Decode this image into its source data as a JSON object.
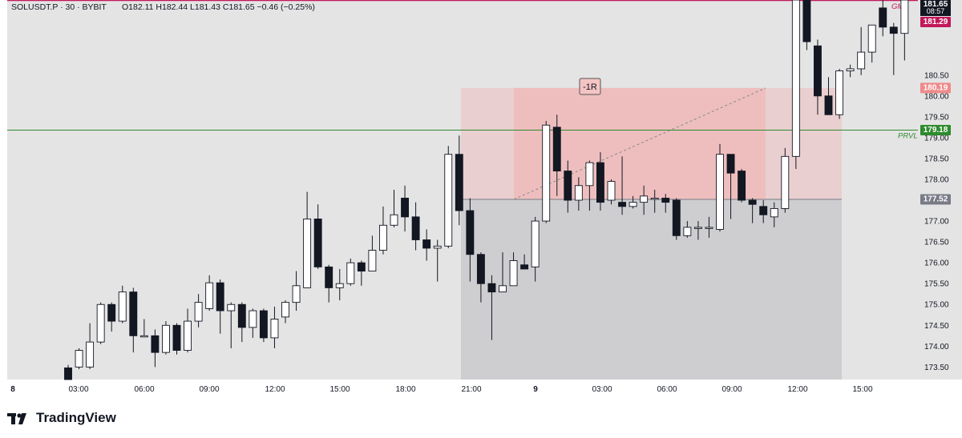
{
  "header": {
    "symbol": "SOLUSDT.P · 30 · BYBIT",
    "ohlc": "O182.11  H182.44  L181.43  C181.65  −0.46 (−0.25%)"
  },
  "brand": {
    "name": "TradingView"
  },
  "colors": {
    "background": "#e4e4e4",
    "bull_body": "#ffffff",
    "bear_body": "#131722",
    "wick": "#131722",
    "risk_zone": "#f4a9a9",
    "reward_zone": "#c7c7cb",
    "prvl_line": "#2e8b2e",
    "price_tag": "#c2185b",
    "stop_tag": "#f08a8a",
    "entry_tag": "#787b86"
  },
  "chart_data": {
    "type": "candlestick",
    "title": "SOLUSDT.P · 30 · BYBIT",
    "ylim": [
      173.2,
      182.3
    ],
    "y_ticks": [
      "173.50",
      "174.00",
      "174.50",
      "175.00",
      "175.50",
      "176.00",
      "176.50",
      "177.00",
      "177.50",
      "178.00",
      "178.50",
      "179.00",
      "179.50",
      "180.00",
      "180.50"
    ],
    "x_ticks": [
      {
        "label": "8",
        "bold": true
      },
      {
        "label": "03:00"
      },
      {
        "label": "06:00"
      },
      {
        "label": "09:00"
      },
      {
        "label": "12:00"
      },
      {
        "label": "15:00"
      },
      {
        "label": "18:00"
      },
      {
        "label": "21:00"
      },
      {
        "label": "9",
        "bold": true
      },
      {
        "label": "03:00"
      },
      {
        "label": "06:00"
      },
      {
        "label": "09:00"
      },
      {
        "label": "12:00"
      },
      {
        "label": "15:00"
      }
    ],
    "candles": [
      [
        173.48,
        173.2,
        173.55,
        173.2
      ],
      [
        173.5,
        173.9,
        173.95,
        173.45
      ],
      [
        173.5,
        174.1,
        174.55,
        173.45
      ],
      [
        174.1,
        175.0,
        175.05,
        174.05
      ],
      [
        175.0,
        174.6,
        175.05,
        174.35
      ],
      [
        174.6,
        175.3,
        175.45,
        174.55
      ],
      [
        175.3,
        174.25,
        175.4,
        173.85
      ],
      [
        174.25,
        174.25,
        174.65,
        174.25
      ],
      [
        174.25,
        173.85,
        174.4,
        173.5
      ],
      [
        173.85,
        174.5,
        174.6,
        173.8
      ],
      [
        174.5,
        173.9,
        174.55,
        173.8
      ],
      [
        173.9,
        174.6,
        174.9,
        173.85
      ],
      [
        174.6,
        175.05,
        175.25,
        174.45
      ],
      [
        174.9,
        175.52,
        175.7,
        174.85
      ],
      [
        175.52,
        174.85,
        175.6,
        174.3
      ],
      [
        174.85,
        175.0,
        175.05,
        173.95
      ],
      [
        175.0,
        174.45,
        175.05,
        174.1
      ],
      [
        174.45,
        174.85,
        174.9,
        174.2
      ],
      [
        174.85,
        174.2,
        174.9,
        174.1
      ],
      [
        174.2,
        174.65,
        174.95,
        173.95
      ],
      [
        174.7,
        175.05,
        175.1,
        174.55
      ],
      [
        175.05,
        175.45,
        175.8,
        174.85
      ],
      [
        175.4,
        177.05,
        177.7,
        175.4
      ],
      [
        177.05,
        175.9,
        177.4,
        175.85
      ],
      [
        175.9,
        175.4,
        175.95,
        175.05
      ],
      [
        175.4,
        175.5,
        175.85,
        175.1
      ],
      [
        175.5,
        176.0,
        176.1,
        175.45
      ],
      [
        176.0,
        175.8,
        176.05,
        175.45
      ],
      [
        175.8,
        176.3,
        176.65,
        175.8
      ],
      [
        176.3,
        176.9,
        177.35,
        176.2
      ],
      [
        176.9,
        177.15,
        177.75,
        176.85
      ],
      [
        177.55,
        177.1,
        177.85,
        176.75
      ],
      [
        177.1,
        176.55,
        177.45,
        176.3
      ],
      [
        176.55,
        176.35,
        176.8,
        176.05
      ],
      [
        176.35,
        176.4,
        176.55,
        175.55
      ],
      [
        176.4,
        178.6,
        178.8,
        176.35
      ],
      [
        178.6,
        177.25,
        179.05,
        176.9
      ],
      [
        177.25,
        176.2,
        177.55,
        175.55
      ],
      [
        176.2,
        175.5,
        176.25,
        175.05
      ],
      [
        175.5,
        175.3,
        175.7,
        174.15
      ],
      [
        175.3,
        175.45,
        176.25,
        175.3
      ],
      [
        175.45,
        176.05,
        176.25,
        175.45
      ],
      [
        175.95,
        175.85,
        176.2,
        175.85
      ],
      [
        175.9,
        177.0,
        177.1,
        175.55
      ],
      [
        177.0,
        179.3,
        179.4,
        176.95
      ],
      [
        179.25,
        178.2,
        179.55,
        177.6
      ],
      [
        178.2,
        177.5,
        178.45,
        177.2
      ],
      [
        177.5,
        177.85,
        178.05,
        177.25
      ],
      [
        177.85,
        178.4,
        178.45,
        177.25
      ],
      [
        178.4,
        177.45,
        178.65,
        177.25
      ],
      [
        177.5,
        177.95,
        178.0,
        177.4
      ],
      [
        177.45,
        177.35,
        178.55,
        177.15
      ],
      [
        177.35,
        177.45,
        177.6,
        177.3
      ],
      [
        177.45,
        177.6,
        177.85,
        177.15
      ],
      [
        177.55,
        177.55,
        177.75,
        177.2
      ],
      [
        177.55,
        177.45,
        177.65,
        177.2
      ],
      [
        177.5,
        176.65,
        177.55,
        176.55
      ],
      [
        176.65,
        176.85,
        177.0,
        176.6
      ],
      [
        176.85,
        176.85,
        177.0,
        176.55
      ],
      [
        176.85,
        176.85,
        177.1,
        176.6
      ],
      [
        176.8,
        178.6,
        178.85,
        176.75
      ],
      [
        178.6,
        178.15,
        178.6,
        177.05
      ],
      [
        178.2,
        177.5,
        178.25,
        177.45
      ],
      [
        177.5,
        177.4,
        177.55,
        176.95
      ],
      [
        177.35,
        177.15,
        177.5,
        176.95
      ],
      [
        177.1,
        177.3,
        177.45,
        176.85
      ],
      [
        177.3,
        178.55,
        178.75,
        177.2
      ],
      [
        178.55,
        182.3,
        182.3,
        178.25
      ],
      [
        182.3,
        181.3,
        182.3,
        181.1
      ],
      [
        181.2,
        180.0,
        181.35,
        179.55
      ],
      [
        180.0,
        179.55,
        180.45,
        179.55
      ],
      [
        179.55,
        180.6,
        180.65,
        179.45
      ],
      [
        180.6,
        180.65,
        180.75,
        180.45
      ],
      [
        180.65,
        181.05,
        181.65,
        180.5
      ],
      [
        181.05,
        181.7,
        181.7,
        180.8
      ],
      [
        182.11,
        181.65,
        182.44,
        181.43
      ],
      [
        181.65,
        181.5,
        181.75,
        180.5
      ],
      [
        181.5,
        182.3,
        182.3,
        180.85
      ]
    ],
    "position": {
      "label": "-1R",
      "entry": 177.52,
      "stop": 180.19,
      "target": 173.5
    },
    "prvl": {
      "label": "PRVL",
      "value": 179.18
    },
    "price_tags": {
      "last_price": "181.65",
      "countdown": "08:57",
      "second_price": "181.29",
      "stop_price": "180.19",
      "prvl_price": "179.18",
      "entry_price": "177.52"
    },
    "annotation_gm": "GM"
  }
}
